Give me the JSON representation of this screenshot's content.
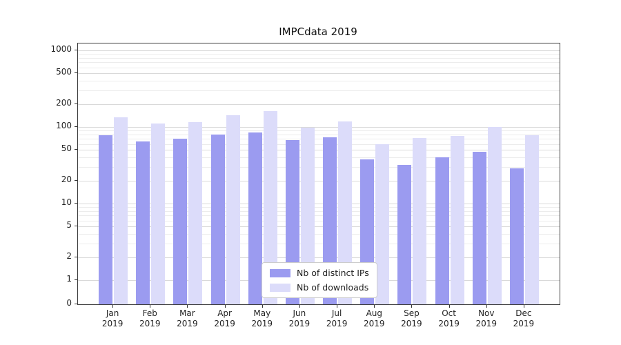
{
  "chart_data": {
    "type": "bar",
    "title": "IMPCdata 2019",
    "categories": [
      "Jan",
      "Feb",
      "Mar",
      "Apr",
      "May",
      "Jun",
      "Jul",
      "Aug",
      "Sep",
      "Oct",
      "Nov",
      "Dec"
    ],
    "year_label": "2019",
    "series": [
      {
        "name": "Nb of distinct IPs",
        "color": "#9b9bf0",
        "values": [
          78,
          65,
          70,
          80,
          85,
          68,
          73,
          38,
          32,
          40,
          47,
          29
        ]
      },
      {
        "name": "Nb of downloads",
        "color": "#dcdcfa",
        "values": [
          135,
          112,
          115,
          142,
          160,
          98,
          118,
          60,
          72,
          76,
          100,
          78
        ]
      }
    ],
    "yscale": "symlog",
    "yticks": [
      0,
      1,
      2,
      5,
      10,
      20,
      50,
      100,
      200,
      500,
      1000
    ],
    "minor_yticks": [
      3,
      4,
      6,
      7,
      8,
      9,
      30,
      40,
      60,
      70,
      80,
      90,
      300,
      400,
      600,
      700,
      800,
      900
    ],
    "ylim": [
      0,
      1300
    ],
    "grid": true,
    "legend_position": "lower center"
  }
}
